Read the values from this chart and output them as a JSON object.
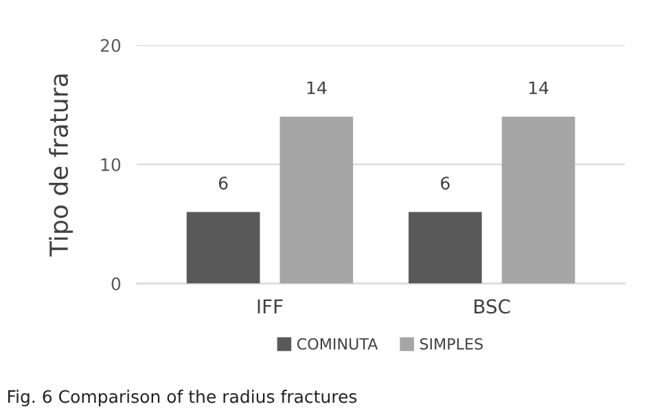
{
  "chart_data": {
    "type": "bar",
    "ylabel": "Tipo de fratura",
    "categories": [
      "IFF",
      "BSC"
    ],
    "series": [
      {
        "name": "COMINUTA",
        "color": "#595959",
        "values": [
          6,
          6
        ]
      },
      {
        "name": "SIMPLES",
        "color": "#a5a5a5",
        "values": [
          14,
          14
        ]
      }
    ],
    "ylim": [
      0,
      20
    ],
    "yticks": [
      0,
      10,
      20
    ],
    "grid": "y",
    "legend": "bottom",
    "data_labels": true,
    "annotations": [
      "Fig. 6 Comparison of the radius fractures"
    ]
  }
}
